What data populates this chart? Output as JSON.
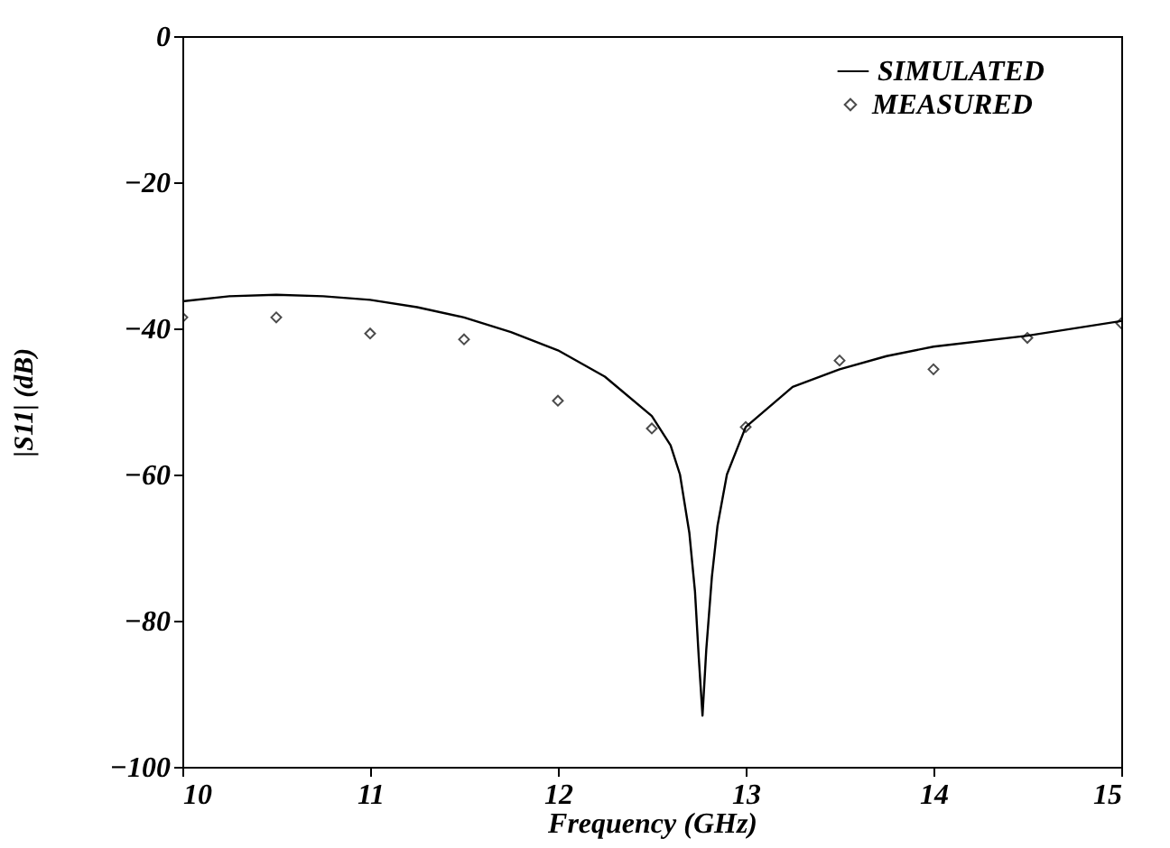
{
  "chart_data": {
    "type": "line",
    "xlabel": "Frequency (GHz)",
    "ylabel": "|S11| (dB)",
    "xlim": [
      10,
      15
    ],
    "xticks": [
      10,
      11,
      12,
      13,
      14,
      15
    ],
    "ylim": [
      -100,
      0
    ],
    "yticks": [
      0,
      -20,
      -40,
      -60,
      -80,
      -100
    ],
    "grid": false,
    "legend": "top right",
    "series": [
      {
        "name": "SIMULATED",
        "color": "#000000",
        "marker": "none",
        "line_style": "solid",
        "x": [
          10,
          10.25,
          10.5,
          10.75,
          11,
          11.25,
          11.5,
          11.75,
          12,
          12.25,
          12.5,
          12.6,
          12.65,
          12.7,
          12.73,
          12.75,
          12.77,
          12.79,
          12.82,
          12.85,
          12.9,
          13,
          13.25,
          13.5,
          13.75,
          14,
          14.5,
          15
        ],
        "values": [
          -36.3,
          -35.6,
          -35.4,
          -35.6,
          -36.1,
          -37.1,
          -38.5,
          -40.5,
          -43,
          -46.6,
          -52,
          -56,
          -60,
          -68,
          -76,
          -85,
          -93,
          -84,
          -74,
          -67,
          -60,
          -53.5,
          -48,
          -45.6,
          -43.8,
          -42.5,
          -41,
          -39
        ]
      },
      {
        "name": "MEASURED",
        "type": "scatter",
        "color": "#000000",
        "marker": "diamond",
        "x": [
          10,
          10.5,
          11,
          11.5,
          12,
          12.5,
          13,
          13.5,
          14,
          14.5,
          15
        ],
        "values": [
          -38.5,
          -38.5,
          -40.7,
          -41.5,
          -49.9,
          -53.7,
          -53.5,
          -44.4,
          -45.6,
          -41.3,
          -39.3
        ]
      }
    ]
  }
}
